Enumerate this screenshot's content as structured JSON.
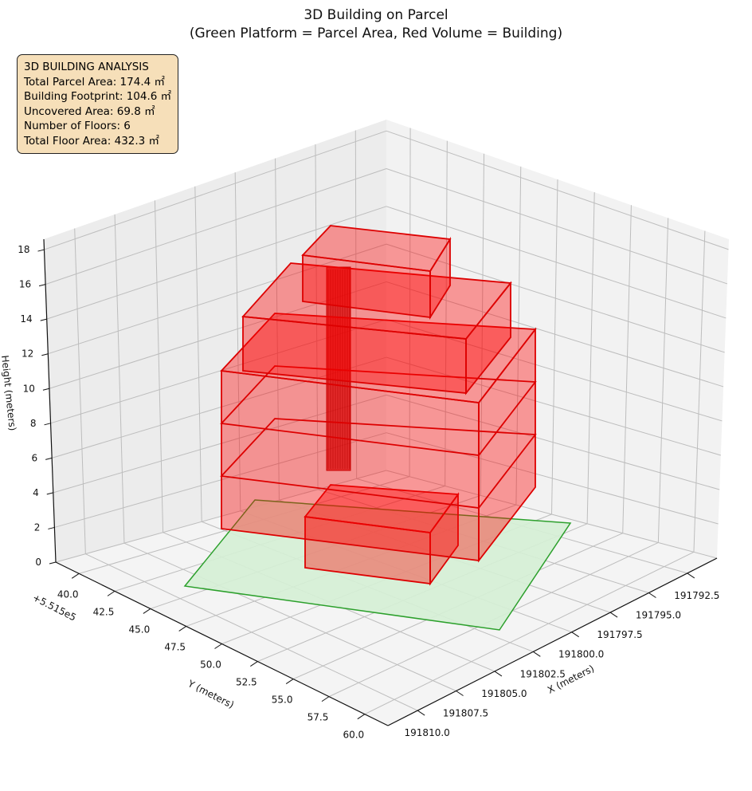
{
  "chart_data": {
    "type": "3d-bar",
    "title": "3D Building on Parcel",
    "subtitle": "(Green Platform = Parcel Area, Red Volume = Building)",
    "xlabel": "X (meters)",
    "ylabel": "Y (meters)",
    "zlabel": "Height (meters)",
    "y_offset_label": "+5.515e5",
    "x_ticks": [
      "191792.5",
      "191795.0",
      "191797.5",
      "191800.0",
      "191802.5",
      "191805.0",
      "191807.5",
      "191810.0"
    ],
    "y_ticks": [
      "40.0",
      "42.5",
      "45.0",
      "47.5",
      "50.0",
      "52.5",
      "55.0",
      "57.5",
      "60.0"
    ],
    "z_ticks": [
      "0",
      "2",
      "4",
      "6",
      "8",
      "10",
      "12",
      "14",
      "16",
      "18"
    ],
    "zlim": [
      0,
      18
    ],
    "grid": true,
    "colors": {
      "parcel": "#2ca02c",
      "parcel_fill": "#d5f0d5",
      "building": "#ff0000"
    }
  },
  "info": {
    "heading": "3D BUILDING ANALYSIS",
    "lines": [
      "Total Parcel Area: 174.4 ㎡",
      "Building Footprint: 104.6 ㎡",
      "Uncovered Area: 69.8 ㎡",
      "Number of Floors: 6",
      "Total Floor Area: 432.3 ㎡"
    ]
  }
}
